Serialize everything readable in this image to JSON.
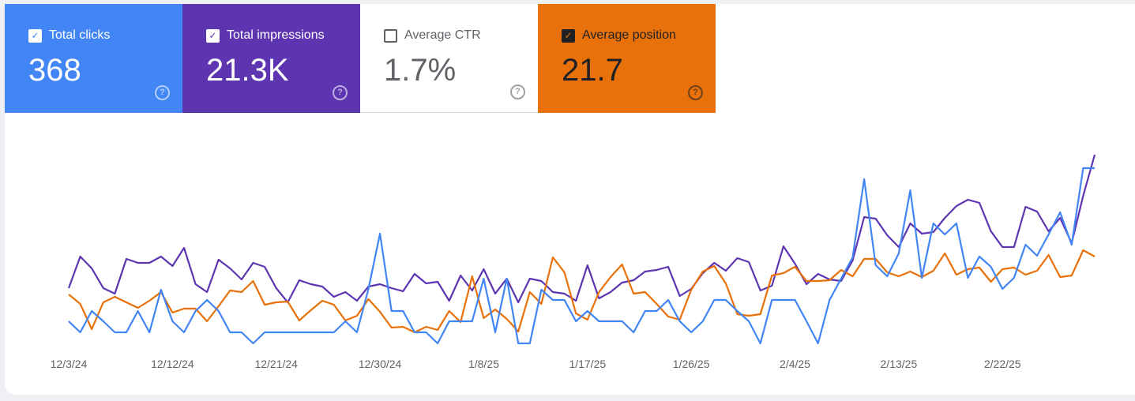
{
  "metrics": [
    {
      "label": "Total clicks",
      "value": "368",
      "checked": true,
      "color": "#4285f4",
      "text_color": "#ffffff"
    },
    {
      "label": "Total impressions",
      "value": "21.3K",
      "checked": true,
      "color": "#5e35b1",
      "text_color": "#ffffff"
    },
    {
      "label": "Average CTR",
      "value": "1.7%",
      "checked": false,
      "color": "#ffffff",
      "text_color": "#5f6368"
    },
    {
      "label": "Average position",
      "value": "21.7",
      "checked": true,
      "color": "#e8710a",
      "text_color": "#202124"
    }
  ],
  "chart_data": {
    "type": "line",
    "categories": [
      "12/3/24",
      null,
      null,
      null,
      null,
      null,
      null,
      null,
      null,
      "12/12/24",
      null,
      null,
      null,
      null,
      null,
      null,
      null,
      null,
      "12/21/24",
      null,
      null,
      null,
      null,
      null,
      null,
      null,
      null,
      "12/30/24",
      null,
      null,
      null,
      null,
      null,
      null,
      null,
      null,
      "1/8/25",
      null,
      null,
      null,
      null,
      null,
      null,
      null,
      null,
      "1/17/25",
      null,
      null,
      null,
      null,
      null,
      null,
      null,
      null,
      "1/26/25",
      null,
      null,
      null,
      null,
      null,
      null,
      null,
      null,
      "2/4/25",
      null,
      null,
      null,
      null,
      null,
      null,
      null,
      null,
      "2/13/25",
      null,
      null,
      null,
      null,
      null,
      null,
      null,
      null,
      "2/22/25",
      null,
      null,
      null,
      null,
      null,
      null,
      null,
      null
    ],
    "ylim": [
      0,
      300
    ],
    "series": [
      {
        "color": "#5e35b1",
        "values": [
          85,
          125,
          110,
          85,
          78,
          122,
          117,
          117,
          125,
          113,
          136,
          90,
          80,
          121,
          110,
          96,
          117,
          112,
          85,
          67,
          95,
          90,
          87,
          74,
          80,
          69,
          87,
          90,
          85,
          81,
          103,
          91,
          93,
          69,
          101,
          82,
          109,
          78,
          97,
          67,
          97,
          94,
          80,
          78,
          69,
          114,
          72,
          80,
          92,
          95,
          106,
          108,
          112,
          75,
          84,
          104,
          117,
          107,
          123,
          118,
          82,
          88,
          138,
          116,
          90,
          103,
          96,
          94,
          120,
          175,
          173,
          152,
          137,
          167,
          154,
          156,
          174,
          189,
          197,
          193,
          157,
          137,
          137,
          188,
          182,
          157,
          174,
          142,
          202,
          254
        ]
      },
      {
        "color": "#e8710a",
        "values": [
          77,
          65,
          33,
          67,
          74,
          67,
          60,
          69,
          80,
          54,
          59,
          59,
          43,
          62,
          82,
          80,
          94,
          64,
          67,
          68,
          44,
          57,
          69,
          64,
          44,
          50,
          71,
          55,
          35,
          36,
          29,
          36,
          32,
          56,
          42,
          100,
          47,
          58,
          46,
          30,
          80,
          65,
          124,
          105,
          53,
          45,
          80,
          99,
          115,
          78,
          80,
          65,
          49,
          45,
          83,
          106,
          113,
          91,
          52,
          50,
          52,
          101,
          104,
          112,
          94,
          94,
          95,
          108,
          100,
          122,
          122,
          105,
          100,
          106,
          99,
          107,
          129,
          102,
          109,
          111,
          93,
          109,
          111,
          102,
          107,
          127,
          99,
          101,
          133,
          125
        ]
      },
      {
        "color": "#4285f4",
        "values": [
          43,
          29,
          56,
          43,
          29,
          29,
          56,
          29,
          83,
          43,
          29,
          56,
          70,
          56,
          29,
          29,
          15,
          29,
          29,
          29,
          29,
          29,
          29,
          29,
          43,
          29,
          84,
          154,
          56,
          56,
          29,
          29,
          15,
          43,
          43,
          43,
          97,
          29,
          97,
          15,
          15,
          83,
          70,
          70,
          43,
          56,
          43,
          43,
          43,
          29,
          56,
          56,
          70,
          43,
          29,
          43,
          70,
          70,
          56,
          43,
          15,
          70,
          70,
          70,
          43,
          15,
          70,
          97,
          124,
          223,
          114,
          100,
          129,
          209,
          98,
          167,
          153,
          167,
          98,
          125,
          112,
          84,
          98,
          140,
          126,
          153,
          181,
          140,
          237,
          237
        ]
      }
    ]
  }
}
